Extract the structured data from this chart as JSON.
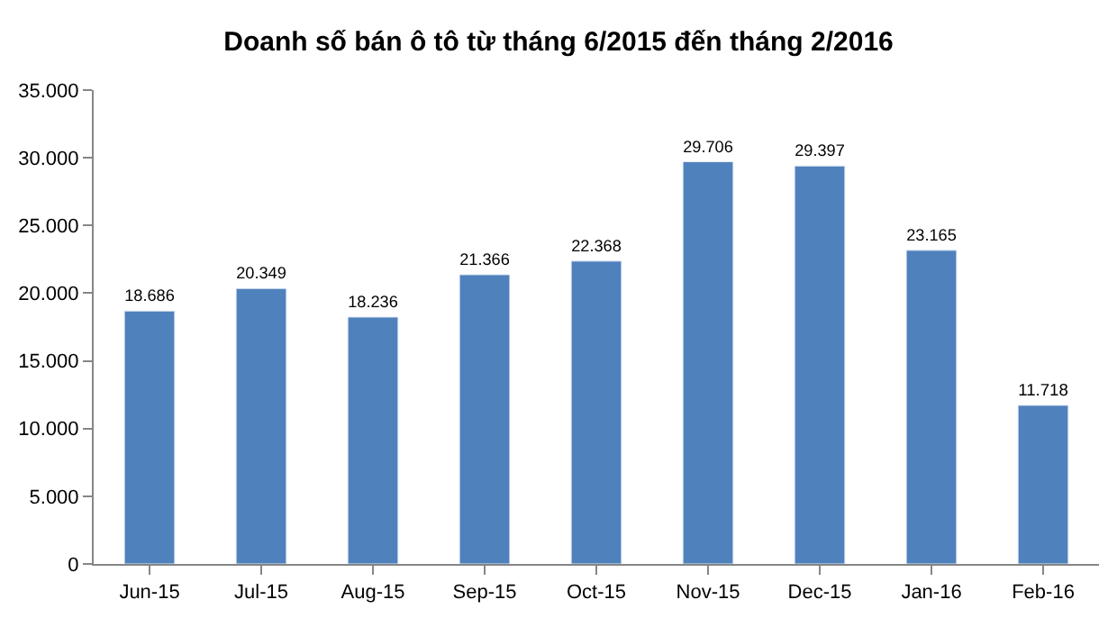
{
  "chart_data": {
    "type": "bar",
    "title": "Doanh số bán ô tô từ tháng 6/2015 đến tháng 2/2016",
    "categories": [
      "Jun-15",
      "Jul-15",
      "Aug-15",
      "Sep-15",
      "Oct-15",
      "Nov-15",
      "Dec-15",
      "Jan-16",
      "Feb-16"
    ],
    "values": [
      18686,
      20349,
      18236,
      21366,
      22368,
      29706,
      29397,
      23165,
      11718
    ],
    "value_labels": [
      "18.686",
      "20.349",
      "18.236",
      "21.366",
      "22.368",
      "29.706",
      "29.397",
      "23.165",
      "11.718"
    ],
    "color": "#4f81bd",
    "ylim": [
      0,
      35000
    ],
    "yticks": [
      {
        "value": 0,
        "label": "0"
      },
      {
        "value": 5000,
        "label": "5.000"
      },
      {
        "value": 10000,
        "label": "10.000"
      },
      {
        "value": 15000,
        "label": "15.000"
      },
      {
        "value": 20000,
        "label": "20.000"
      },
      {
        "value": 25000,
        "label": "25.000"
      },
      {
        "value": 30000,
        "label": "30.000"
      },
      {
        "value": 35000,
        "label": "35.000"
      }
    ],
    "grid": false,
    "legend": false
  }
}
